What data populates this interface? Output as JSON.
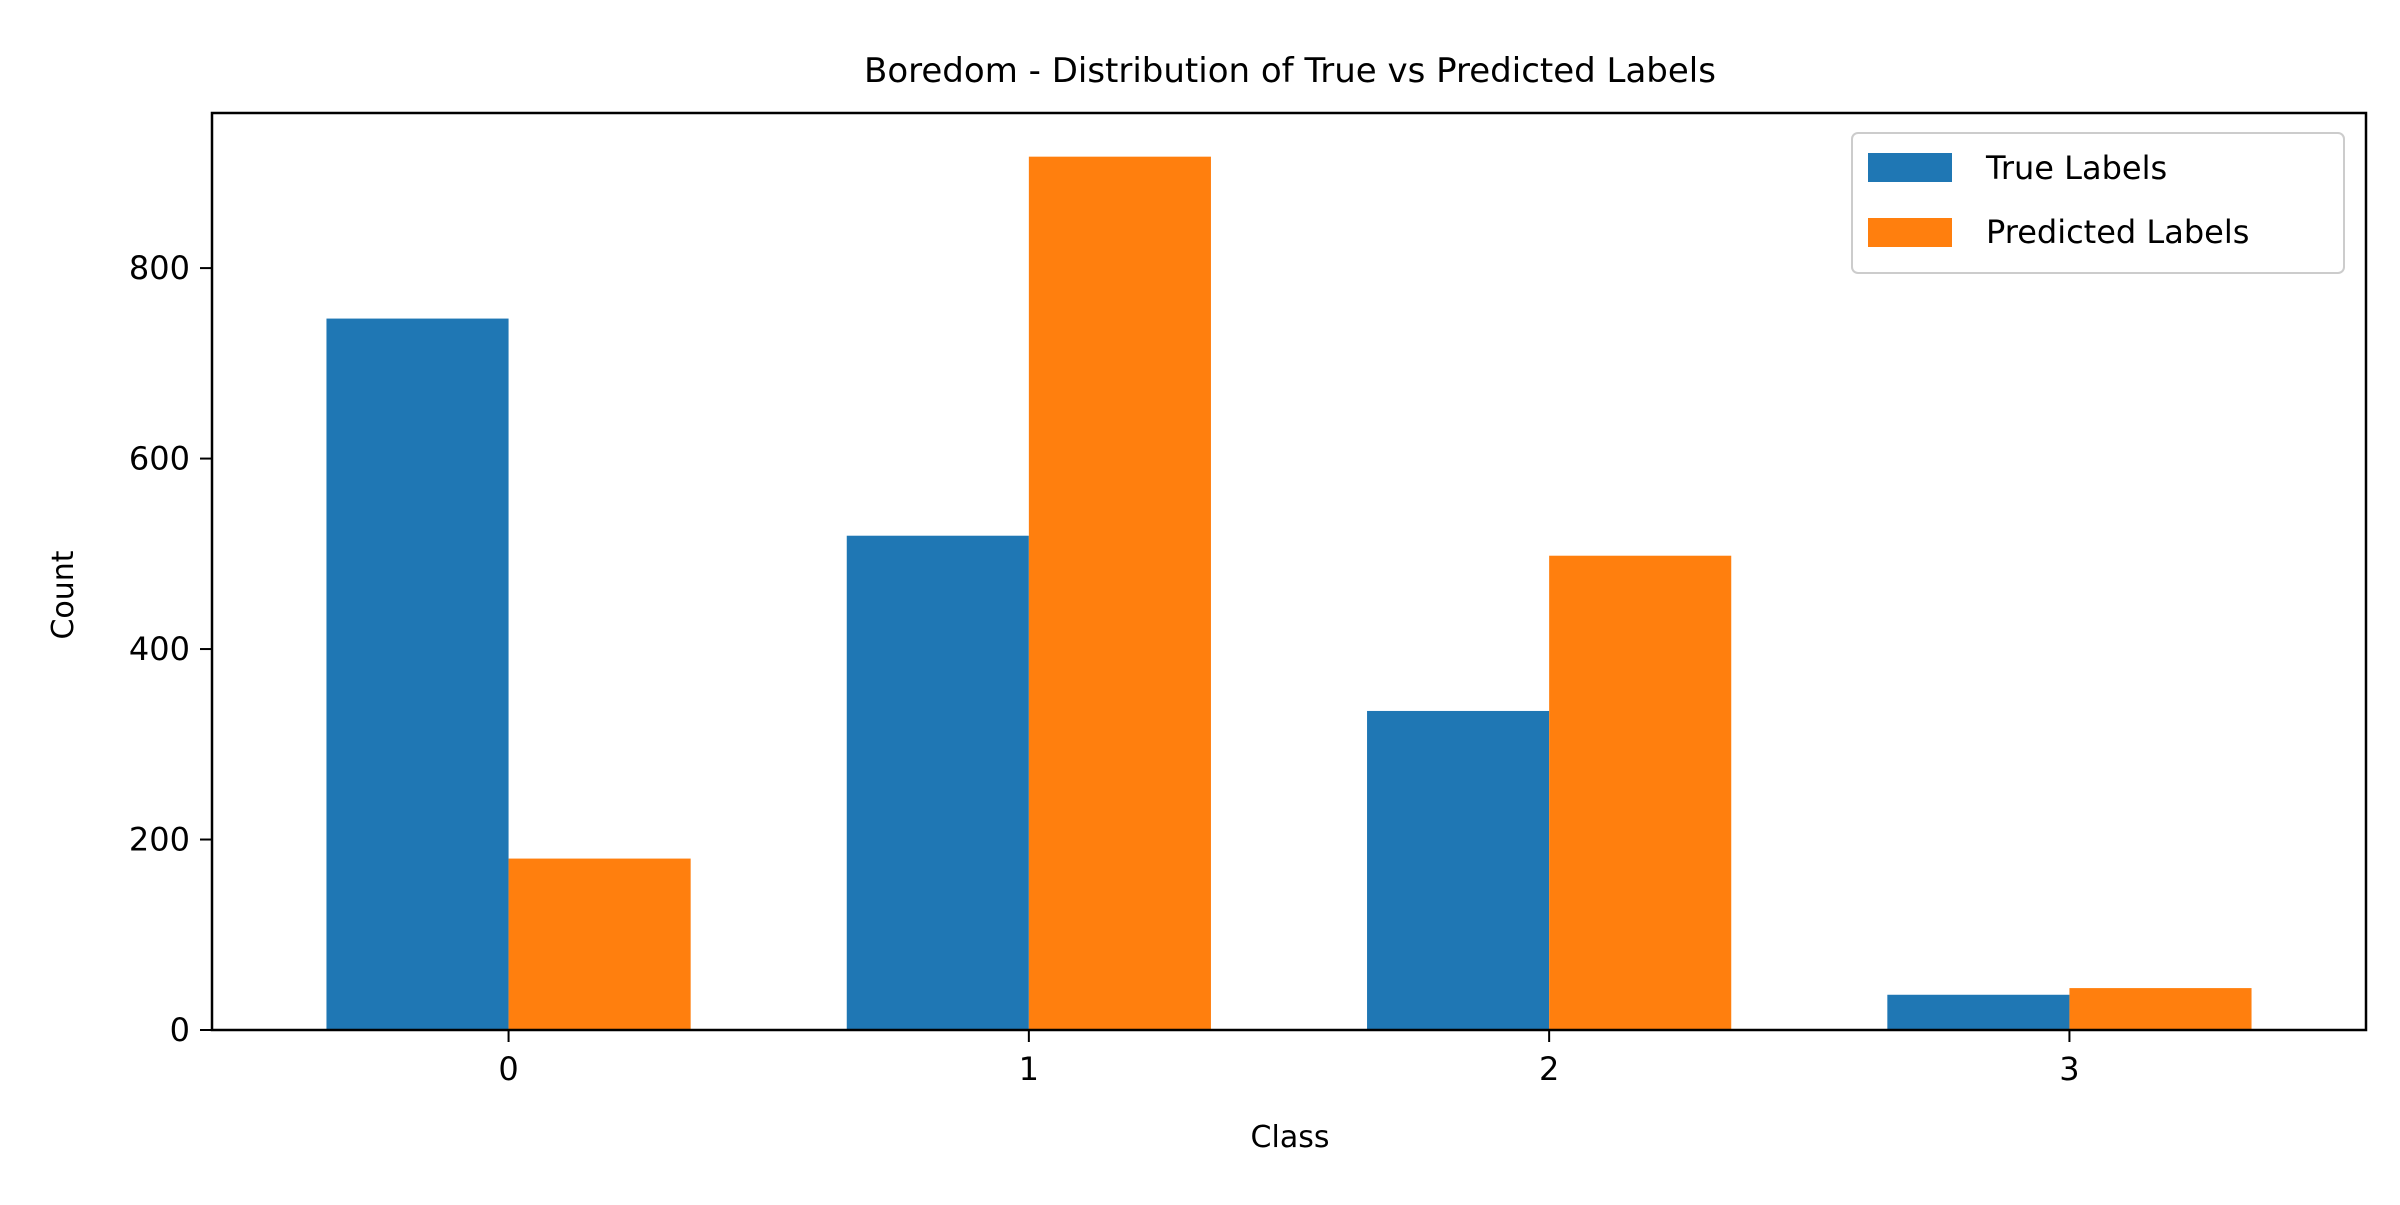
{
  "chart_data": {
    "type": "bar",
    "title": "Boredom - Distribution of True vs Predicted Labels",
    "xlabel": "Class",
    "ylabel": "Count",
    "categories": [
      "0",
      "1",
      "2",
      "3"
    ],
    "series": [
      {
        "name": "True Labels",
        "color": "#1f77b4",
        "values": [
          747,
          519,
          335,
          37
        ]
      },
      {
        "name": "Predicted Labels",
        "color": "#ff7f0e",
        "values": [
          180,
          917,
          498,
          44
        ]
      }
    ],
    "ylim": [
      0,
      962.85
    ],
    "yticks": [
      0,
      200,
      400,
      600,
      800
    ],
    "grid": false,
    "legend_position": "top-right"
  }
}
